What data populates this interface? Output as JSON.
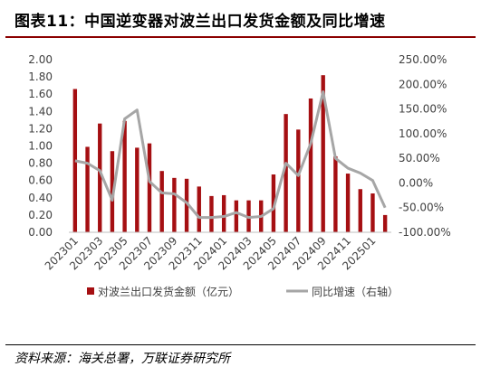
{
  "figure": {
    "title": "图表11：中国逆变器对波兰出口发货金额及同比增速",
    "source": "资料来源：海关总署，万联证券研究所"
  },
  "colors": {
    "bar": "#a50f12",
    "line": "#a6a6a6",
    "rule": "#8b0000"
  },
  "chart_data": {
    "type": "bar",
    "categories": [
      "202301",
      "202302",
      "202303",
      "202304",
      "202305",
      "202306",
      "202307",
      "202308",
      "202309",
      "202310",
      "202311",
      "202312",
      "202401",
      "202402",
      "202403",
      "202404",
      "202405",
      "202406",
      "202407",
      "202408",
      "202409",
      "202410",
      "202411",
      "202412",
      "202501",
      "202502"
    ],
    "x_tick_labels": [
      "202301",
      "202303",
      "202305",
      "202307",
      "202309",
      "202311",
      "202401",
      "202403",
      "202405",
      "202407",
      "202409",
      "202411",
      "202501"
    ],
    "series": [
      {
        "name": "对波兰出口发货金额（亿元）",
        "type": "bar",
        "axis": "left",
        "values": [
          1.66,
          0.99,
          1.26,
          0.94,
          1.29,
          0.98,
          1.03,
          0.71,
          0.63,
          0.62,
          0.53,
          0.42,
          0.43,
          0.37,
          0.37,
          0.37,
          0.67,
          1.37,
          1.19,
          1.55,
          1.82,
          0.88,
          0.68,
          0.5,
          0.45,
          0.2
        ]
      },
      {
        "name": "同比增速（右轴）",
        "type": "line",
        "axis": "right",
        "values": [
          45,
          40,
          25,
          -35,
          130,
          148,
          3,
          -20,
          -22,
          -40,
          -70,
          -70,
          -68,
          -60,
          -70,
          -68,
          -52,
          40,
          15,
          80,
          185,
          50,
          30,
          20,
          5,
          -50
        ]
      }
    ],
    "y_left": {
      "min": 0,
      "max": 2.0,
      "ticks": [
        "0.00",
        "0.20",
        "0.40",
        "0.60",
        "0.80",
        "1.00",
        "1.20",
        "1.40",
        "1.60",
        "1.80",
        "2.00"
      ]
    },
    "y_right": {
      "min": -100,
      "max": 250,
      "ticks": [
        "-100.00%",
        "-50.00%",
        "0.00%",
        "50.00%",
        "100.00%",
        "150.00%",
        "200.00%",
        "250.00%"
      ]
    },
    "legend": {
      "placement": "bottom",
      "bar_label": "对波兰出口发货金额（亿元）",
      "line_label": "同比增速（右轴）"
    },
    "grid": false
  }
}
